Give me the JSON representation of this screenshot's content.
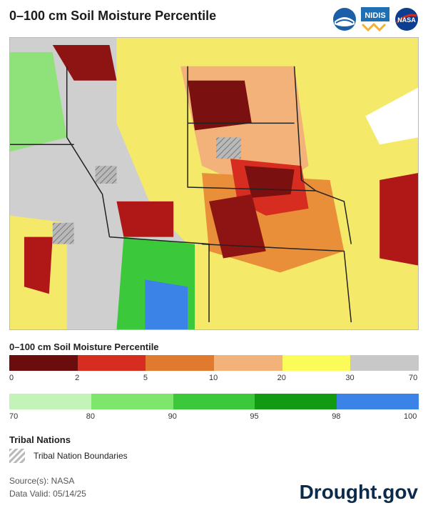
{
  "title": "0–100 cm Soil Moisture Percentile",
  "logos": [
    {
      "name": "noaa-logo",
      "text": "NOAA"
    },
    {
      "name": "nidis-logo",
      "text": "NIDIS"
    },
    {
      "name": "nasa-logo",
      "text": "NASA"
    }
  ],
  "legend": {
    "title": "0–100 cm Soil Moisture Percentile",
    "dry_bar": {
      "colors": [
        "#6b0d0d",
        "#d62d20",
        "#e07a2e",
        "#f3b27a",
        "#fbfb5a",
        "#c8c8c8"
      ],
      "ticks": [
        "0",
        "2",
        "5",
        "10",
        "20",
        "30",
        "70"
      ]
    },
    "wet_bar": {
      "colors": [
        "#c4f3b8",
        "#7ee66c",
        "#3bc93b",
        "#119a12",
        "#3b83e6"
      ],
      "ticks": [
        "70",
        "80",
        "90",
        "95",
        "98",
        "100"
      ]
    }
  },
  "tribal": {
    "title": "Tribal Nations",
    "label": "Tribal Nation Boundaries"
  },
  "source": "Source(s): NASA",
  "valid": "Data Valid: 05/14/25",
  "brand": "Drought.gov"
}
